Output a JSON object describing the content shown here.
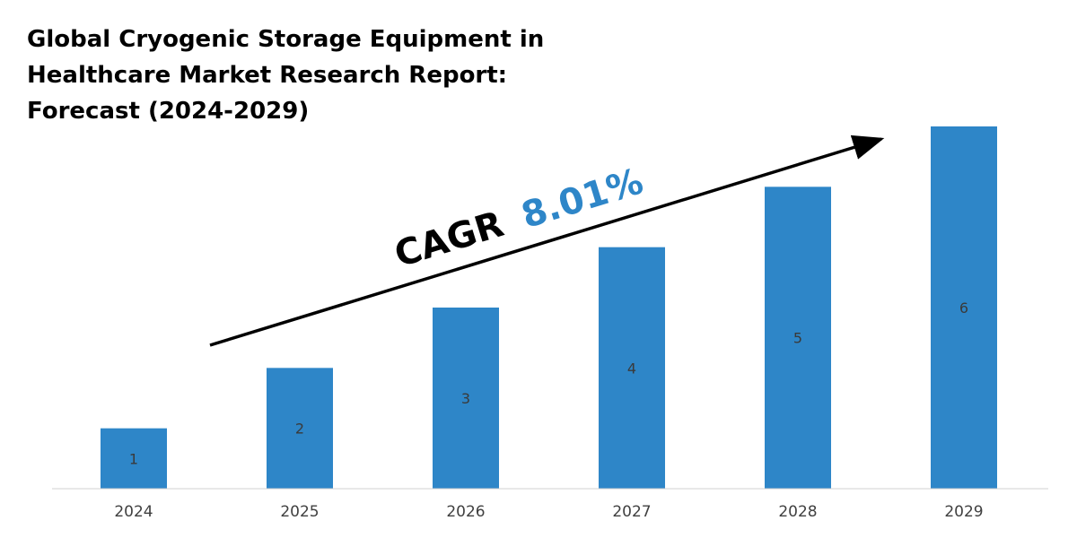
{
  "title_lines": [
    "Global Cryogenic Storage Equipment in",
    "Healthcare Market Research Report:",
    "Forecast (2024-2029)"
  ],
  "annotation": {
    "prefix": "CAGR",
    "value": "8.01%",
    "prefix_color": "#000000",
    "value_color": "#2e86c8"
  },
  "colors": {
    "bar": "#2e86c8",
    "axis": "#d0d0d0",
    "arrow": "#000000"
  },
  "chart_data": {
    "type": "bar",
    "categories": [
      "2024",
      "2025",
      "2026",
      "2027",
      "2028",
      "2029"
    ],
    "values": [
      1,
      2,
      3,
      4,
      5,
      6
    ],
    "data_labels": [
      "1",
      "2",
      "3",
      "4",
      "5",
      "6"
    ],
    "ylim": [
      0,
      6
    ],
    "grid": false,
    "legend": "none"
  }
}
